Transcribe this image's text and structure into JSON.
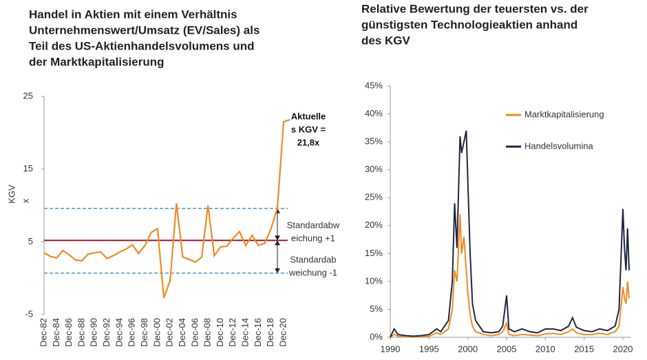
{
  "chart_data": [
    {
      "type": "line",
      "title": [
        "Handel in Aktien mit einem Verhältnis",
        "Unternehmenswert/Umsatz (EV/Sales) als",
        "Teil des US-Aktienhandelsvolumens und",
        "der Marktkapitalisierung"
      ],
      "y_label": "KGV",
      "y_unit": "x",
      "categories": [
        "Dec-82",
        null,
        "Dec-84",
        null,
        "Dec-86",
        null,
        "Dec-88",
        null,
        "Dec-90",
        null,
        "Dec-92",
        null,
        "Dec-94",
        null,
        "Dec-96",
        null,
        "Dec-98",
        null,
        "Dec-00",
        null,
        "Dec-02",
        null,
        "Dec-04",
        null,
        "Dec-06",
        null,
        "Dec-08",
        null,
        "Dec-10",
        null,
        "Dec-12",
        null,
        "Dec-14",
        null,
        "Dec-16",
        null,
        "Dec-18",
        null,
        "Dec-20",
        null
      ],
      "values": [
        3.5,
        3.0,
        2.8,
        3.8,
        3.2,
        2.5,
        2.4,
        3.3,
        3.5,
        3.6,
        2.7,
        3.1,
        3.6,
        4.0,
        4.6,
        3.4,
        4.5,
        6.3,
        6.8,
        -2.7,
        -0.3,
        10.3,
        2.9,
        2.6,
        2.2,
        2.9,
        10.0,
        3.1,
        4.3,
        4.4,
        5.5,
        6.4,
        4.5,
        5.9,
        4.5,
        4.8,
        6.8,
        9.6,
        21.5,
        21.8
      ],
      "color": "#f28a1e",
      "ylim": [
        -5,
        25
      ],
      "yticks": [
        -5,
        5,
        15,
        25
      ],
      "reference_lines": [
        {
          "value": 5.2,
          "color": "#a0162b",
          "style": "solid"
        },
        {
          "value": 9.6,
          "color": "#2e7fc2",
          "style": "dashed"
        },
        {
          "value": 0.7,
          "color": "#2e7fc2",
          "style": "dashed"
        }
      ],
      "annotations": [
        {
          "lines": [
            "Aktuelle",
            "s KGV =",
            "21,8x"
          ]
        },
        {
          "lines": [
            "Standardabw",
            "eichung +1"
          ]
        },
        {
          "lines": [
            "Standardab",
            "weichung -1"
          ]
        }
      ]
    },
    {
      "type": "line",
      "title": [
        "Relative Bewertung der teuersten vs. der",
        "günstigsten Technologieaktien anhand",
        "des KGV"
      ],
      "x": [
        1990,
        1990.5,
        1991,
        1992,
        1993,
        1994,
        1995,
        1996,
        1996.5,
        1997,
        1997.5,
        1998,
        1998.3,
        1998.6,
        1999,
        1999.2,
        1999.5,
        1999.8,
        2000,
        2000.3,
        2000.6,
        2001,
        2001.5,
        2002,
        2003,
        2004,
        2004.5,
        2005,
        2005.3,
        2006,
        2007,
        2008,
        2009,
        2010,
        2011,
        2012,
        2013,
        2013.5,
        2014,
        2015,
        2016,
        2017,
        2018,
        2019,
        2019.5,
        2020,
        2020.2,
        2020.4,
        2020.6,
        2020.8
      ],
      "series": [
        {
          "name": "Marktkapitalisierung",
          "color": "#f28a1e",
          "values": [
            0,
            0.5,
            0.2,
            0.1,
            0.1,
            0.1,
            0.2,
            0.8,
            0.5,
            1,
            1.5,
            5,
            12,
            10,
            22,
            15,
            18,
            12,
            8,
            4,
            2,
            1,
            0.8,
            0.5,
            0.3,
            0.5,
            1,
            2.5,
            0.5,
            0.3,
            0.5,
            0.4,
            0.3,
            0.6,
            0.7,
            0.5,
            1,
            1.5,
            0.8,
            0.5,
            0.5,
            0.7,
            0.5,
            1,
            2,
            9,
            7,
            6,
            10,
            7
          ]
        },
        {
          "name": "Handelsvolumina",
          "color": "#1f2640",
          "values": [
            0,
            1.5,
            0.5,
            0.3,
            0.2,
            0.3,
            0.5,
            1.5,
            1,
            2,
            3,
            10,
            24,
            16,
            36,
            33,
            35,
            37,
            28,
            15,
            6,
            3,
            2,
            1,
            0.8,
            1,
            2,
            7.5,
            1.5,
            1,
            1.5,
            1,
            0.8,
            1.5,
            1.5,
            1.2,
            2,
            3.5,
            1.8,
            1.2,
            1,
            1.5,
            1.2,
            2,
            5,
            23,
            16,
            12,
            19.5,
            12
          ]
        }
      ],
      "xlim": [
        1990,
        2021
      ],
      "xticks": [
        1990,
        1995,
        2000,
        2005,
        2010,
        2015,
        2020
      ],
      "ylim": [
        0,
        45
      ],
      "yticks": [
        {
          "value": 0,
          "label": "0%"
        },
        {
          "value": 5,
          "label": "5%"
        },
        {
          "value": 10,
          "label": "10%"
        },
        {
          "value": 15,
          "label": "15%"
        },
        {
          "value": 20,
          "label": "20%"
        },
        {
          "value": 25,
          "label": "25%"
        },
        {
          "value": 30,
          "label": "30%"
        },
        {
          "value": 35,
          "label": "35%"
        },
        {
          "value": 40,
          "label": "40%"
        },
        {
          "value": 45,
          "label": "45%"
        }
      ]
    }
  ]
}
